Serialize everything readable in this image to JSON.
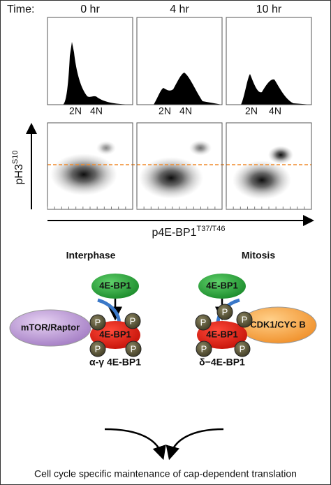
{
  "time_label": "Time:",
  "panels": [
    {
      "time": "0 hr",
      "ploidy": [
        "2N",
        "4N"
      ]
    },
    {
      "time": "4 hr",
      "ploidy": [
        "2N",
        "4N"
      ]
    },
    {
      "time": "10 hr",
      "ploidy": [
        "2N",
        "4N"
      ]
    }
  ],
  "y_axis": {
    "label": "pH3",
    "superscript": "S10"
  },
  "x_axis": {
    "label": "p4E-BP1",
    "superscript": "T37/T46"
  },
  "diagram": {
    "interphase": {
      "title": "Interphase",
      "substrate": "4E-BP1",
      "kinase": "mTOR/Raptor",
      "product": "4E-BP1",
      "phospho": [
        "P",
        "P",
        "P",
        "P"
      ],
      "product_label": "α-γ 4E-BP1"
    },
    "mitosis": {
      "title": "Mitosis",
      "substrate": "4E-BP1",
      "kinase": "CDK1/CYC B",
      "product": "4E-BP1",
      "phospho": [
        "P",
        "P",
        "P",
        "P",
        "P"
      ],
      "product_label": "δ−4E-BP1"
    }
  },
  "conclusion": "Cell cycle specific maintenance of cap-dependent translation"
}
